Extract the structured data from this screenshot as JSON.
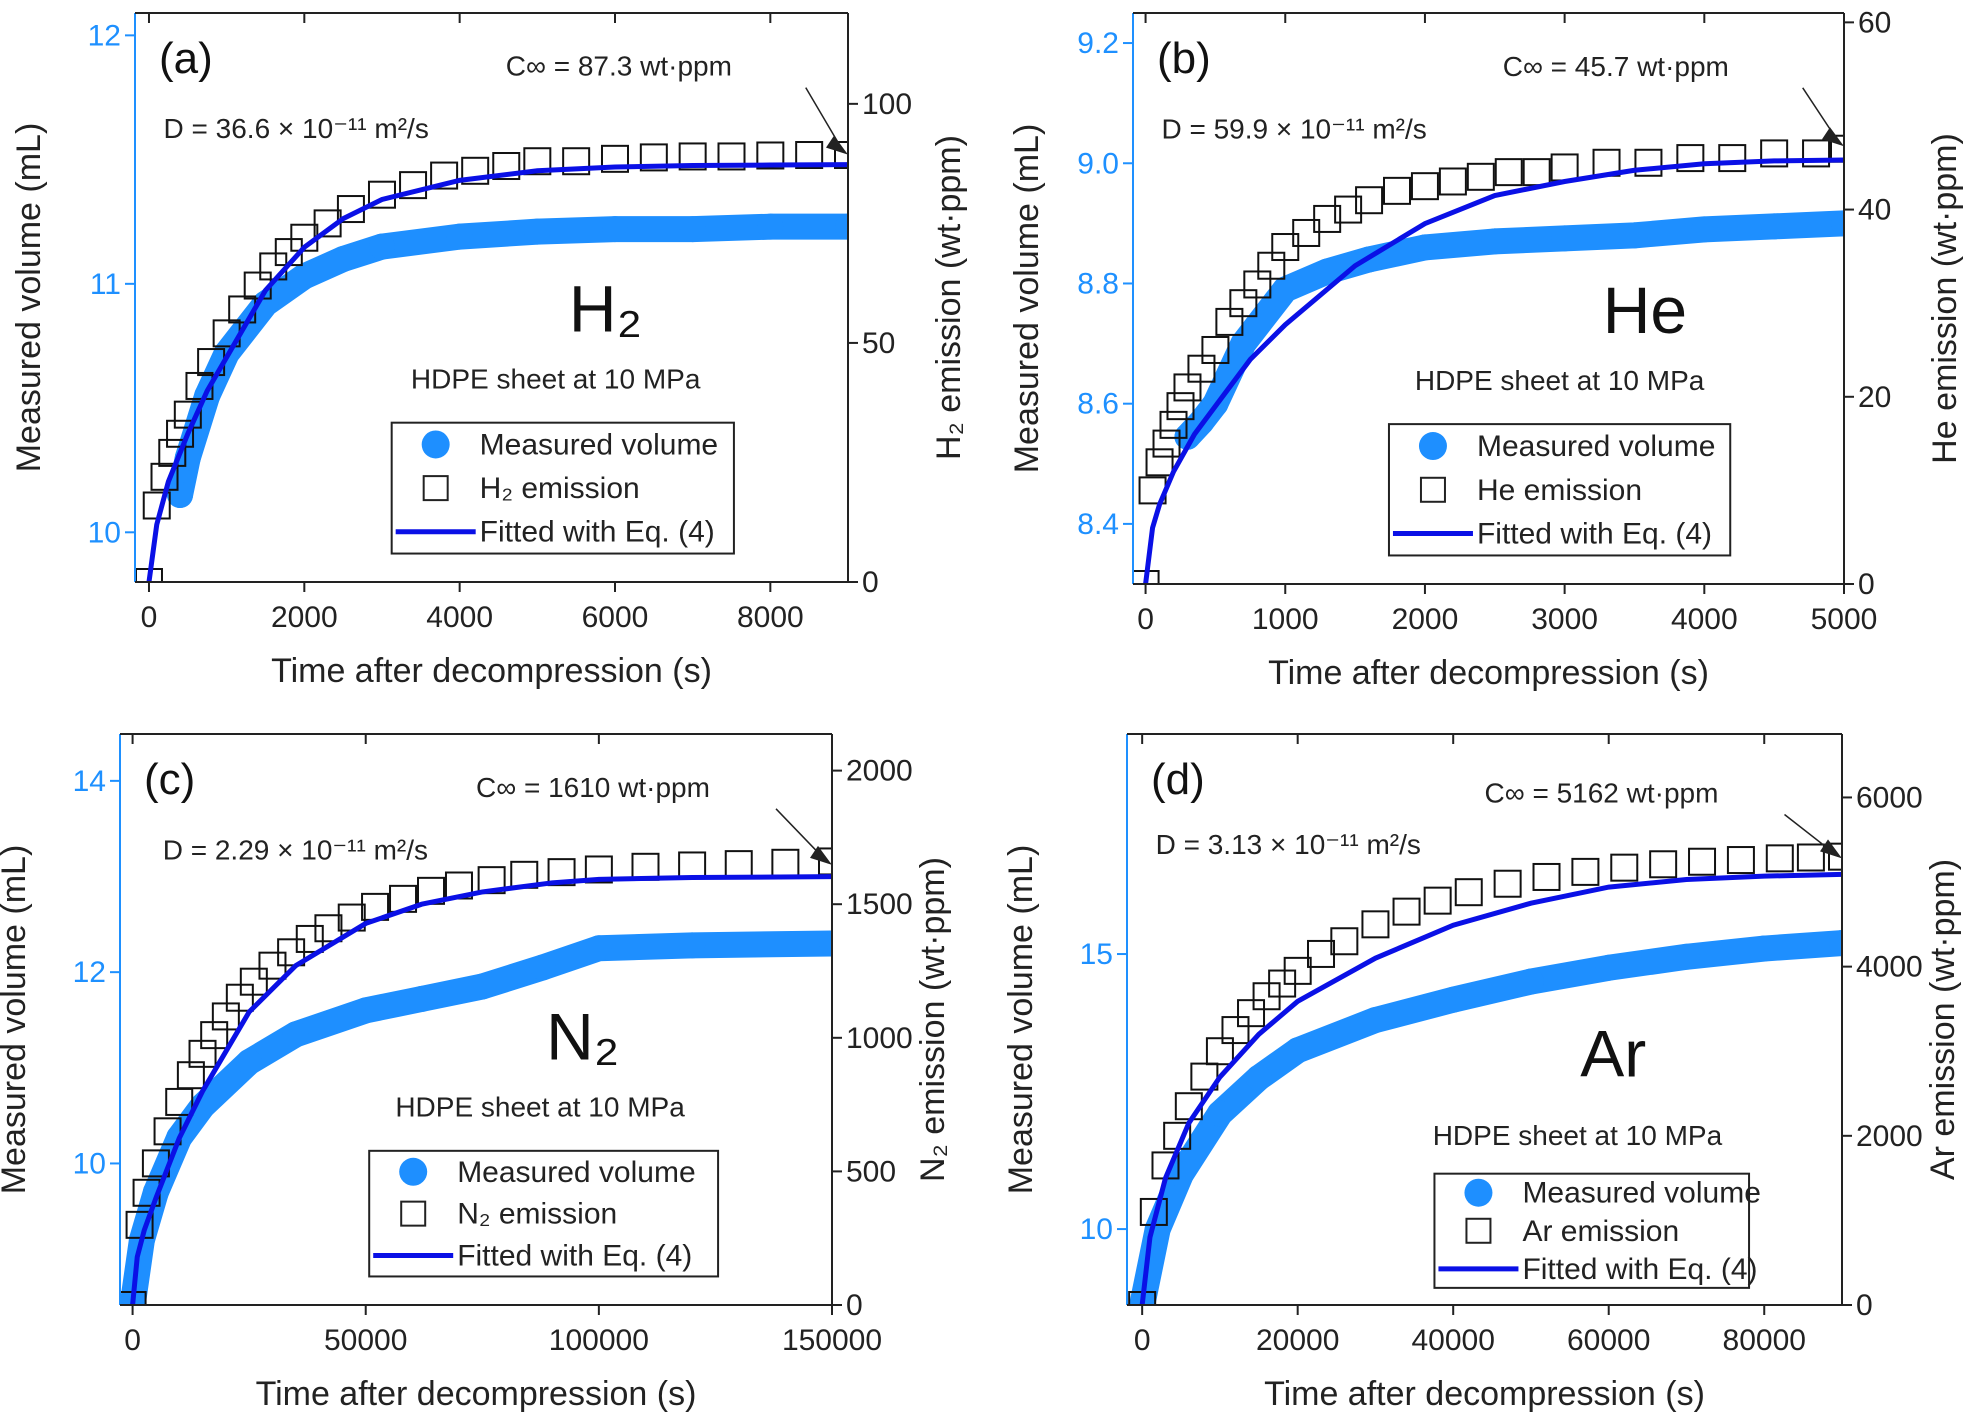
{
  "colors": {
    "measured": "#1e8fff",
    "fit": "#0a10e6",
    "emission": "#111111",
    "left_axis": "#1e90ff"
  },
  "chart_data": [
    {
      "type": "scatter",
      "panel": "(a)",
      "gas": "H₂",
      "xlabel": "Time after decompression (s)",
      "ylabel_left": "Measured volume (mL)",
      "ylabel_right": "H₂ emission (wt·ppm)",
      "xlim": [
        -180,
        9000
      ],
      "xticks": [
        0,
        2000,
        4000,
        6000,
        8000
      ],
      "ylim_left": [
        9.8,
        12.09
      ],
      "yticks_left": [
        10,
        11,
        12
      ],
      "ytick_left_labels": [
        "10",
        "11",
        "12"
      ],
      "ylim_right": [
        0,
        119
      ],
      "yticks_right": [
        0,
        50,
        100
      ],
      "D_label": "D = 36.6 × 10⁻¹¹ m²/s",
      "C_label": "C∞ = 87.3 wt·ppm",
      "C_inf": 87.3,
      "condition": "HDPE sheet at 10 MPa",
      "legend": [
        "Measured volume",
        "H₂ emission",
        "Fitted with Eq. (4)"
      ],
      "fit": {
        "t": [
          0,
          100,
          250,
          500,
          750,
          1000,
          1500,
          2000,
          2500,
          3000,
          4000,
          5000,
          6000,
          7000,
          8000,
          9000
        ],
        "y": [
          0,
          12,
          21,
          31,
          40,
          47,
          61,
          70,
          76,
          80,
          84,
          86,
          86.8,
          87.1,
          87.2,
          87.3
        ]
      },
      "emission": {
        "t": [
          0,
          100,
          200,
          300,
          400,
          500,
          650,
          800,
          1000,
          1200,
          1400,
          1600,
          1800,
          2000,
          2300,
          2600,
          3000,
          3400,
          3800,
          4200,
          4600,
          5000,
          5500,
          6000,
          6500,
          7000,
          7500,
          8000,
          8500,
          9000
        ],
        "y": [
          0,
          16,
          22,
          27,
          31,
          35,
          41,
          46,
          52,
          57,
          62,
          66,
          69,
          72,
          75,
          78,
          81,
          83,
          85,
          86,
          87,
          88,
          88,
          88.5,
          88.8,
          89,
          89,
          89.2,
          89.3,
          89.3
        ]
      },
      "measured": {
        "t": [
          400,
          500,
          750,
          1000,
          1500,
          2000,
          2500,
          3000,
          4000,
          5000,
          6000,
          7000,
          8000,
          9000
        ],
        "y": [
          10.15,
          10.3,
          10.55,
          10.72,
          10.92,
          11.03,
          11.1,
          11.15,
          11.19,
          11.21,
          11.22,
          11.22,
          11.23,
          11.23
        ]
      }
    },
    {
      "type": "scatter",
      "panel": "(b)",
      "gas": "He",
      "xlabel": "Time after decompression (s)",
      "ylabel_left": "Measured volume (mL)",
      "ylabel_right": "He emission (wt·ppm)",
      "xlim": [
        -90,
        5000
      ],
      "xticks": [
        0,
        1000,
        2000,
        3000,
        4000,
        5000
      ],
      "ylim_left": [
        8.3,
        9.25
      ],
      "yticks_left": [
        8.4,
        8.6,
        8.8,
        9.0,
        9.2
      ],
      "ytick_left_labels": [
        "8.4",
        "8.6",
        "8.8",
        "9.0",
        "9.2"
      ],
      "ylim_right": [
        0,
        61
      ],
      "yticks_right": [
        0,
        20,
        40,
        60
      ],
      "D_label": "D = 59.9 × 10⁻¹¹ m²/s",
      "C_label": "C∞ = 45.7 wt·ppm",
      "C_inf": 45.7,
      "condition": "HDPE sheet at 10 MPa",
      "legend": [
        "Measured volume",
        "He emission",
        "Fitted with Eq. (4)"
      ],
      "fit": {
        "t": [
          0,
          50,
          100,
          200,
          350,
          500,
          750,
          1000,
          1500,
          2000,
          2500,
          3000,
          3500,
          4000,
          4500,
          5000
        ],
        "y": [
          0,
          6,
          8.5,
          12,
          16,
          19,
          24,
          27.7,
          34,
          38.5,
          41.5,
          43,
          44.2,
          44.9,
          45.2,
          45.3
        ]
      },
      "emission": {
        "t": [
          0,
          50,
          100,
          150,
          200,
          250,
          300,
          400,
          500,
          600,
          700,
          800,
          900,
          1000,
          1150,
          1300,
          1450,
          1600,
          1800,
          2000,
          2200,
          2400,
          2600,
          2800,
          3000,
          3300,
          3600,
          3900,
          4200,
          4500,
          4800,
          5000
        ],
        "y": [
          0,
          10,
          13,
          15,
          17,
          19,
          21,
          23,
          25,
          28,
          30,
          32,
          34,
          36,
          37.5,
          39,
          40,
          41,
          42,
          42.5,
          43,
          43.5,
          44,
          44,
          44.5,
          45,
          45,
          45.5,
          45.5,
          46,
          46,
          46.5
        ]
      },
      "measured": {
        "t": [
          300,
          400,
          500,
          700,
          1000,
          1300,
          1600,
          2000,
          2500,
          3000,
          3500,
          4000,
          4500,
          5000
        ],
        "y": [
          8.545,
          8.57,
          8.6,
          8.7,
          8.79,
          8.82,
          8.84,
          8.86,
          8.87,
          8.875,
          8.88,
          8.89,
          8.895,
          8.9
        ]
      }
    },
    {
      "type": "scatter",
      "panel": "(c)",
      "gas": "N₂",
      "xlabel": "Time after decompression (s)",
      "ylabel_left": "Measured volume (mL)",
      "ylabel_right": "N₂ emission (wt·ppm)",
      "xlim": [
        -2700,
        150000
      ],
      "xticks": [
        0,
        50000,
        100000,
        150000
      ],
      "ylim_left": [
        8.52,
        14.49
      ],
      "yticks_left": [
        10,
        12,
        14
      ],
      "ytick_left_labels": [
        "10",
        "12",
        "14"
      ],
      "ylim_right": [
        0,
        2137
      ],
      "yticks_right": [
        0,
        500,
        1000,
        1500,
        2000
      ],
      "D_label": "D = 2.29 × 10⁻¹¹ m²/s",
      "C_label": "C∞ = 1610 wt·ppm",
      "C_inf": 1610,
      "condition": "HDPE sheet at 10 MPa",
      "legend": [
        "Measured volume",
        "N₂ emission",
        "Fitted with Eq. (4)"
      ],
      "fit": {
        "t": [
          0,
          1000,
          2500,
          5000,
          10000,
          15000,
          25000,
          35000,
          50000,
          62000,
          75000,
          90000,
          100000,
          120000,
          150000
        ],
        "y": [
          0,
          180,
          280,
          400,
          624,
          800,
          1097,
          1270,
          1428,
          1500,
          1546,
          1580,
          1593,
          1600,
          1603
        ]
      },
      "emission": {
        "t": [
          0,
          1500,
          3000,
          5000,
          7500,
          10000,
          12500,
          15000,
          17500,
          20000,
          23000,
          26000,
          30000,
          34000,
          38000,
          42000,
          47000,
          52000,
          58000,
          64000,
          70000,
          77000,
          84000,
          92000,
          100000,
          110000,
          120000,
          130000,
          140000,
          150000
        ],
        "y": [
          0,
          300,
          420,
          530,
          650,
          760,
          860,
          940,
          1010,
          1080,
          1150,
          1210,
          1270,
          1320,
          1370,
          1410,
          1450,
          1490,
          1520,
          1550,
          1570,
          1590,
          1610,
          1620,
          1630,
          1640,
          1645,
          1650,
          1655,
          1660
        ]
      },
      "measured": {
        "t": [
          0,
          2000,
          5000,
          10000,
          15000,
          25000,
          35000,
          50000,
          62000,
          75000,
          88000,
          100000,
          120000,
          150000
        ],
        "y": [
          8.52,
          9.2,
          9.7,
          10.27,
          10.6,
          11.06,
          11.35,
          11.6,
          11.72,
          11.85,
          12.05,
          12.25,
          12.28,
          12.3
        ]
      }
    },
    {
      "type": "scatter",
      "panel": "(d)",
      "gas": "Ar",
      "xlabel": "Time after decompression (s)",
      "ylabel_left": "Measured volume (mL)",
      "ylabel_right": "Ar emission (wt·ppm)",
      "xlim": [
        -1950,
        90000
      ],
      "xticks": [
        0,
        20000,
        40000,
        60000,
        80000
      ],
      "ylim_left": [
        8.62,
        19
      ],
      "yticks_left": [
        10,
        15
      ],
      "ytick_left_labels": [
        "10",
        "15"
      ],
      "ylim_right": [
        0,
        6750
      ],
      "yticks_right": [
        0,
        2000,
        4000,
        6000
      ],
      "D_label": "D = 3.13 × 10⁻¹¹ m²/s",
      "C_label": "C∞ = 5162 wt·ppm",
      "C_inf": 5162,
      "condition": "HDPE sheet at 10 MPa",
      "legend": [
        "Measured volume",
        "Ar emission",
        "Fitted with Eq. (4)"
      ],
      "fit": {
        "t": [
          0,
          1000,
          3000,
          6000,
          10000,
          15000,
          20000,
          30000,
          40000,
          50000,
          60000,
          70000,
          80000,
          90000
        ],
        "y": [
          0,
          800,
          1500,
          2150,
          2695,
          3200,
          3590,
          4100,
          4490,
          4750,
          4940,
          5030,
          5070,
          5090
        ]
      },
      "emission": {
        "t": [
          0,
          1500,
          3000,
          4500,
          6000,
          8000,
          10000,
          12000,
          14000,
          16000,
          18000,
          20000,
          23000,
          26000,
          30000,
          34000,
          38000,
          42000,
          47000,
          52000,
          57000,
          62000,
          67000,
          72000,
          77000,
          82000,
          86000,
          90000
        ],
        "y": [
          0,
          1100,
          1650,
          2000,
          2350,
          2700,
          3000,
          3250,
          3450,
          3650,
          3800,
          3950,
          4150,
          4300,
          4500,
          4650,
          4780,
          4880,
          4980,
          5060,
          5120,
          5170,
          5210,
          5240,
          5260,
          5280,
          5290,
          5300
        ]
      },
      "measured": {
        "t": [
          0,
          2000,
          5000,
          10000,
          15000,
          20000,
          30000,
          40000,
          50000,
          60000,
          70000,
          80000,
          90000
        ],
        "y": [
          8.62,
          10.0,
          11.0,
          12.1,
          12.75,
          13.25,
          13.8,
          14.17,
          14.5,
          14.75,
          14.95,
          15.1,
          15.2
        ]
      }
    }
  ]
}
